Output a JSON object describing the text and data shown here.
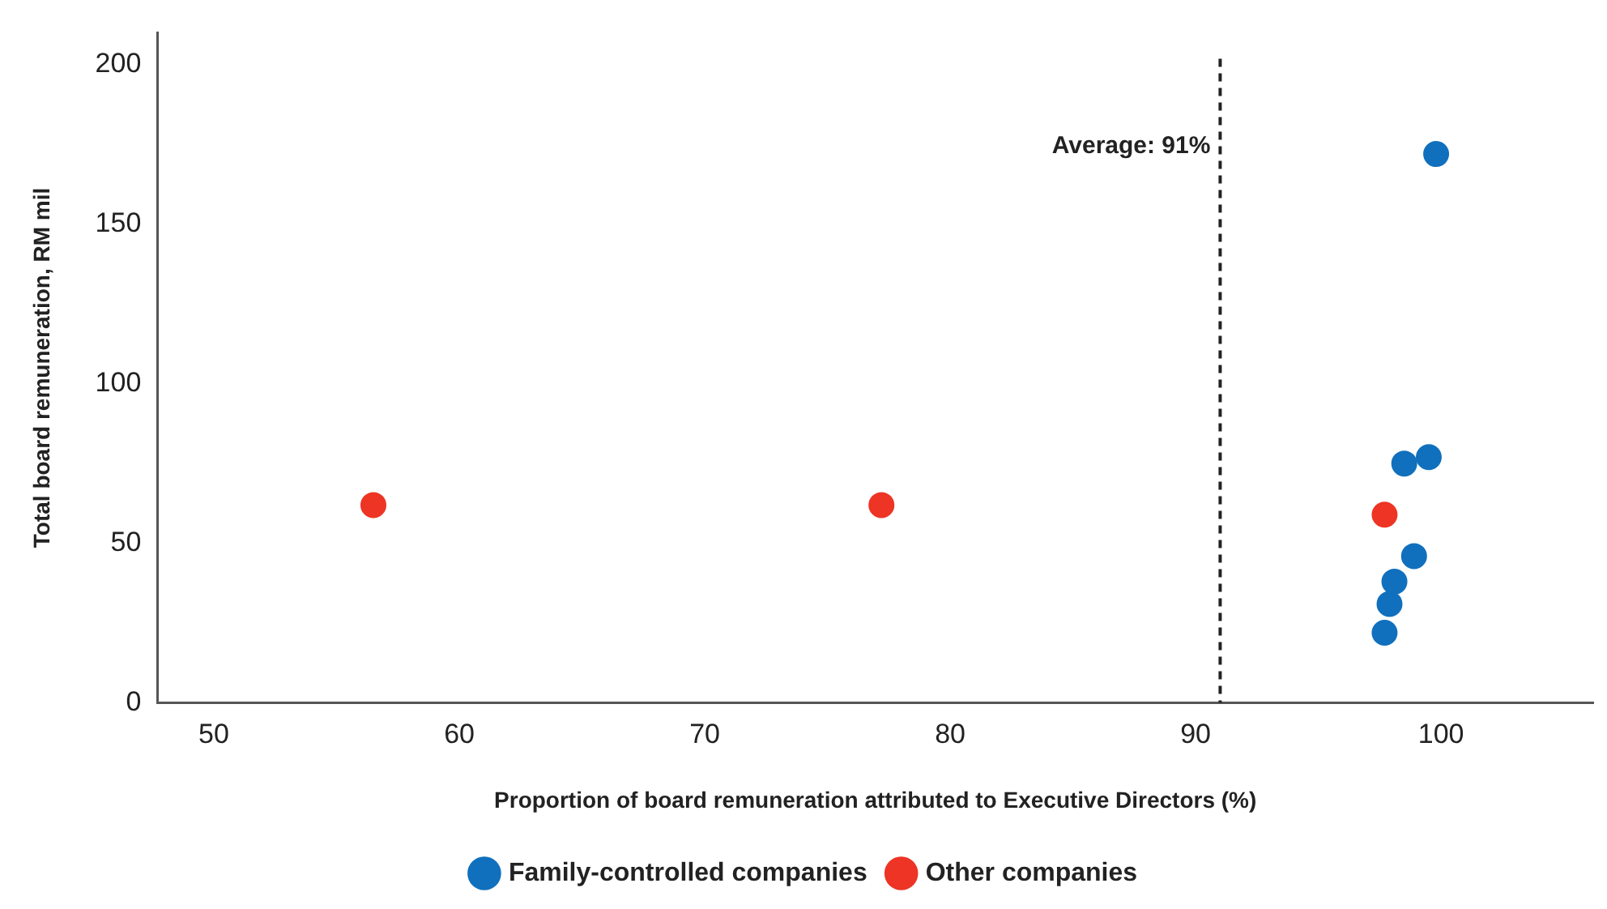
{
  "chart_data": {
    "type": "scatter",
    "xlabel": "Proportion of board remuneration attributed to Executive Directors (%)",
    "ylabel": "Total board remuneration, RM mil",
    "series": [
      {
        "name": "Family-controlled companies",
        "color": "#1170bd",
        "x": [
          99.8,
          99.5,
          98.5,
          98.9,
          98.1,
          97.9,
          97.7
        ],
        "values": [
          172,
          77,
          75,
          46,
          38,
          31,
          22
        ]
      },
      {
        "name": "Other companies",
        "color": "#ee3424",
        "x": [
          56.5,
          77.2,
          97.7
        ],
        "values": [
          62,
          62,
          59
        ]
      }
    ],
    "xlim": [
      47.7,
      106.2
    ],
    "xticks": [
      50,
      60,
      70,
      80,
      90,
      100
    ],
    "ylim": [
      0,
      210
    ],
    "yticks": [
      0,
      50,
      100,
      150,
      200
    ],
    "ref_lines": [
      {
        "axis": "x",
        "value": 91,
        "label": "Average: 91%",
        "line_style": "dashed"
      }
    ],
    "grid": false,
    "legend": "bottom",
    "marker": "circle"
  }
}
